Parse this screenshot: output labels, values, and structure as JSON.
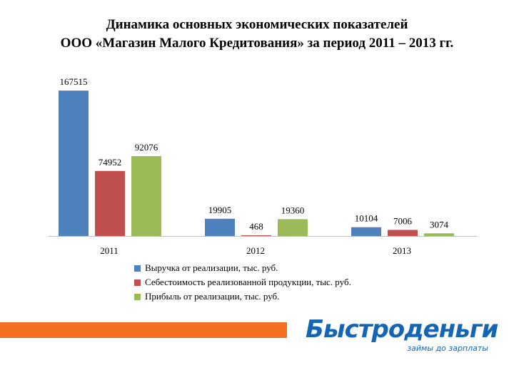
{
  "title_line1": "Динамика основных экономических показателей",
  "title_line2": "ООО «Магазин Малого Кредитования» за период 2011 – 2013 гг.",
  "chart_data": {
    "type": "bar",
    "categories": [
      "2011",
      "2012",
      "2013"
    ],
    "series": [
      {
        "name": "Выручка  от реализации,  тыс. руб.",
        "values": [
          167515,
          19905,
          10104
        ],
        "color": "#4f81bd"
      },
      {
        "name": "Себестоимость реализованной продукции, тыс. руб.",
        "values": [
          74952,
          468,
          7006
        ],
        "color": "#c0504d"
      },
      {
        "name": "Прибыль  от реализации, тыс. руб.",
        "values": [
          92076,
          19360,
          3074
        ],
        "color": "#9bbb59"
      }
    ],
    "ylim": [
      0,
      175000
    ],
    "grid": false,
    "legend": "bottom"
  },
  "banner_color": "#f36f21",
  "logo": {
    "main": "Быстроденьги",
    "sub": "займы до зарплаты",
    "color": "#1565b4"
  }
}
